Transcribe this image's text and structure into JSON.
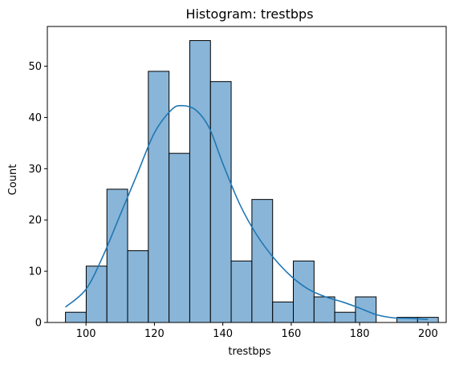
{
  "chart_data": {
    "type": "bar",
    "title": "Histogram: trestbps",
    "xlabel": "trestbps",
    "ylabel": "Count",
    "xlim": [
      88.7,
      205.3
    ],
    "ylim": [
      0,
      57.75
    ],
    "xticks": [
      100,
      120,
      140,
      160,
      180,
      200
    ],
    "yticks": [
      0,
      10,
      20,
      30,
      40,
      50
    ],
    "bin_edges": [
      94,
      100.06,
      106.11,
      112.17,
      118.22,
      124.28,
      130.33,
      136.39,
      142.44,
      148.5,
      154.56,
      160.61,
      166.67,
      172.72,
      178.78,
      184.83,
      190.89,
      196.94,
      203
    ],
    "counts": [
      2,
      11,
      26,
      14,
      49,
      33,
      55,
      47,
      12,
      24,
      4,
      12,
      5,
      2,
      5,
      0,
      1,
      1
    ],
    "bar_color": "#89b5d8",
    "edge_color": "#000000",
    "kde": {
      "color": "#1f77b4",
      "x": [
        94,
        100,
        105,
        110,
        115,
        120,
        125,
        128,
        132,
        136,
        140,
        145,
        150,
        155,
        160,
        165,
        170,
        175,
        180,
        185,
        190,
        195,
        200
      ],
      "y": [
        3,
        6.5,
        13,
        21,
        29,
        37,
        41.5,
        42.3,
        41.5,
        38,
        31,
        23,
        17,
        12.5,
        9,
        6.5,
        5,
        4,
        2.8,
        1.5,
        0.9,
        0.8,
        0.6
      ]
    },
    "grid": false,
    "legend": "none"
  }
}
